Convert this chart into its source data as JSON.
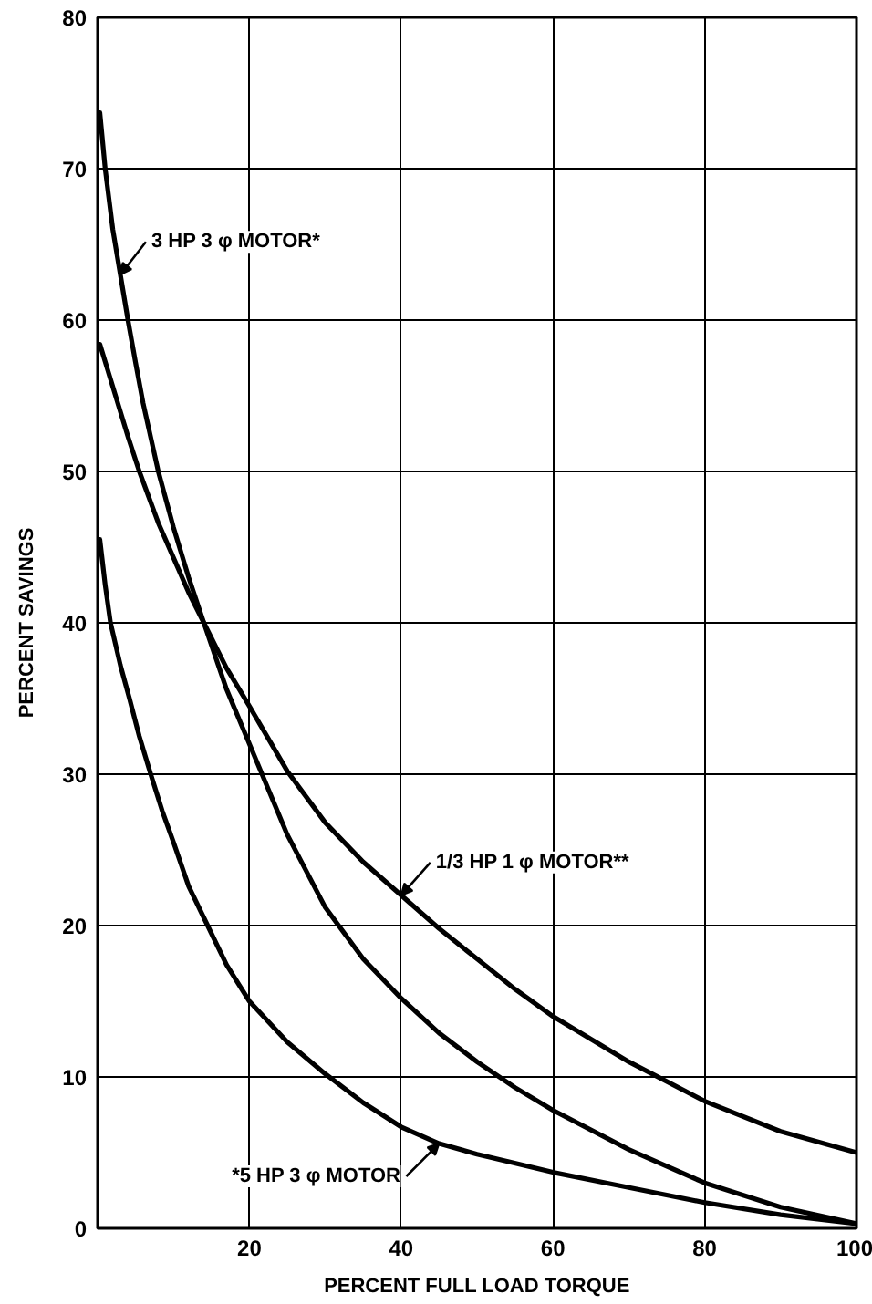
{
  "chart_data": {
    "type": "line",
    "xlabel": "PERCENT FULL LOAD TORQUE",
    "ylabel": "PERCENT SAVINGS",
    "xlim": [
      0,
      100
    ],
    "ylim": [
      0,
      80
    ],
    "xticks": [
      20,
      40,
      60,
      80,
      100
    ],
    "yticks": [
      0,
      10,
      20,
      30,
      40,
      50,
      60,
      70,
      80
    ],
    "grid": true,
    "line_style": "solid",
    "series": [
      {
        "name": "3 HP 3 φ MOTOR*",
        "color": "#000000",
        "x": [
          0.3,
          1,
          2,
          3,
          4,
          5,
          6,
          8,
          10,
          12,
          14,
          17,
          20,
          25,
          30,
          35,
          40,
          45,
          50,
          55,
          60,
          70,
          80,
          90,
          100
        ],
        "values": [
          73.7,
          70,
          66,
          63,
          60,
          57.2,
          54.5,
          50,
          46.3,
          43,
          40,
          35.6,
          32,
          26,
          21.2,
          17.8,
          15.2,
          12.9,
          11.0,
          9.3,
          7.8,
          5.2,
          3.0,
          1.4,
          0.3
        ]
      },
      {
        "name": "1/3 HP 1 φ MOTOR**",
        "color": "#000000",
        "x": [
          0.3,
          2,
          4,
          5.5,
          8,
          10,
          12,
          14,
          17,
          20,
          25,
          30,
          35,
          40,
          45,
          50,
          55,
          60,
          70,
          80,
          90,
          100
        ],
        "values": [
          58.4,
          55.6,
          52.3,
          50,
          46.6,
          44.3,
          42,
          40,
          37,
          34.5,
          30.2,
          26.8,
          24.2,
          22,
          19.8,
          17.8,
          15.8,
          14,
          11,
          8.4,
          6.4,
          5.0
        ]
      },
      {
        "name": "*5 HP 3 φ MOTOR",
        "color": "#000000",
        "x": [
          0.3,
          1,
          1.7,
          3,
          4.2,
          5.5,
          7,
          8.5,
          10,
          12,
          14.5,
          17,
          20,
          25,
          30,
          35,
          40,
          45,
          50,
          60,
          70,
          80,
          90,
          100
        ],
        "values": [
          45.5,
          42.5,
          40,
          37.2,
          35,
          32.5,
          30,
          27.6,
          25.5,
          22.6,
          20,
          17.4,
          15,
          12.3,
          10.2,
          8.3,
          6.7,
          5.6,
          4.9,
          3.7,
          2.7,
          1.7,
          0.9,
          0.3
        ]
      }
    ]
  }
}
